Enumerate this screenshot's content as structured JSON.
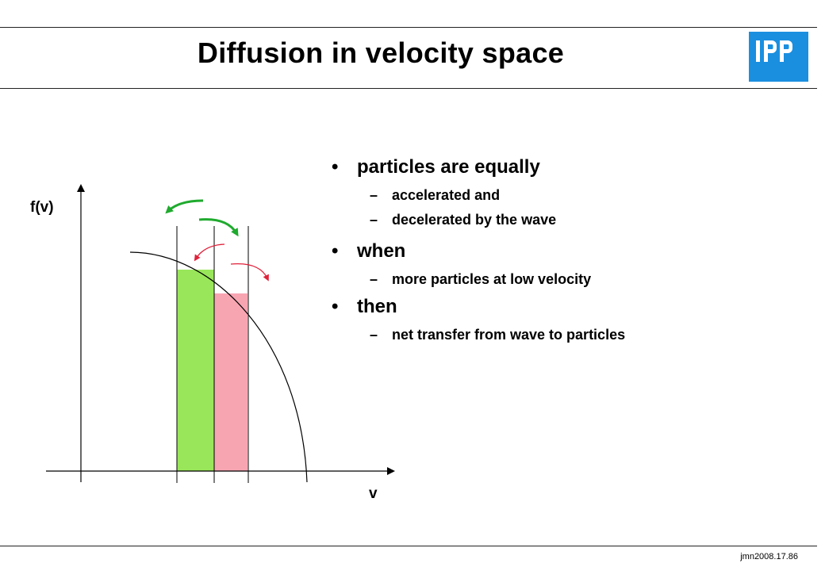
{
  "slide": {
    "title": "Diffusion in velocity space",
    "logo_text": "IPP",
    "footer_code": "jmn2008.17.86"
  },
  "diagram": {
    "y_axis_label": "f(v)",
    "x_axis_label": "v",
    "colors": {
      "green_bar": "#99e65a",
      "pink_bar": "#f8a5b2",
      "green_arrow": "#1faa2e",
      "red_arrow": "#e0213a",
      "logo_blue": "#1a8fe0"
    }
  },
  "bullets": [
    {
      "text": "particles are equally",
      "subitems": [
        "accelerated and",
        "decelerated by the wave"
      ]
    },
    {
      "text": "when",
      "subitems": [
        "more particles at low  velocity"
      ]
    },
    {
      "text": "then",
      "subitems": [
        "net transfer from wave to particles"
      ]
    }
  ]
}
